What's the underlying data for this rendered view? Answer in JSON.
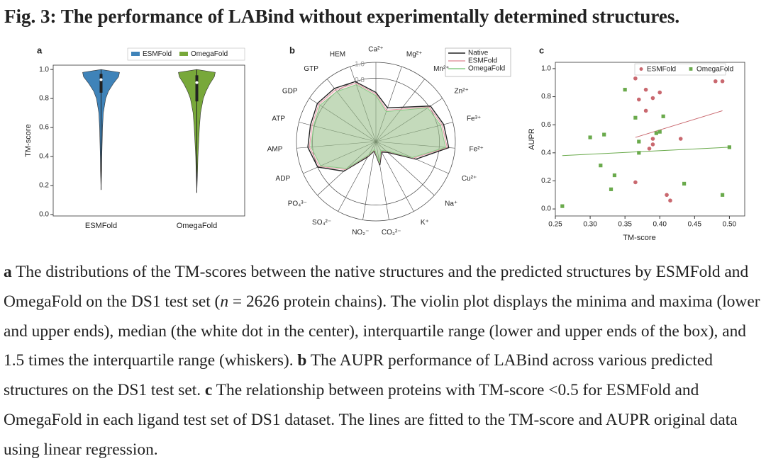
{
  "title": "Fig. 3: The performance of LABind without experimentally determined structures.",
  "chart_data": [
    {
      "type": "violin",
      "panel": "a",
      "ylabel": "TM-score",
      "categories": [
        "ESMFold",
        "OmegaFold"
      ],
      "ylim": [
        -0.01,
        1.03
      ],
      "yticks": [
        {
          "value": 0,
          "label": "0.0"
        },
        0.2,
        0.4,
        0.6,
        0.8,
        {
          "value": 1,
          "label": "1.0"
        }
      ],
      "series": [
        {
          "name": "ESMFold",
          "color": "#3f83b9",
          "min": 0.17,
          "q1": 0.84,
          "median": 0.93,
          "q3": 0.97,
          "max": 1.0,
          "kde_y": [
            0.3,
            0.4,
            0.5,
            0.6,
            0.7,
            0.8,
            0.85,
            0.9,
            0.95,
            0.98
          ],
          "kde_width": [
            0.03,
            0.04,
            0.06,
            0.08,
            0.12,
            0.25,
            0.4,
            0.65,
            0.95,
            1.0
          ]
        },
        {
          "name": "OmegaFold",
          "color": "#78a83a",
          "min": 0.15,
          "q1": 0.78,
          "median": 0.91,
          "q3": 0.96,
          "max": 1.0,
          "kde_y": [
            0.3,
            0.4,
            0.5,
            0.6,
            0.7,
            0.8,
            0.85,
            0.9,
            0.95,
            0.98
          ],
          "kde_width": [
            0.04,
            0.06,
            0.1,
            0.14,
            0.2,
            0.35,
            0.5,
            0.7,
            0.95,
            1.0
          ]
        }
      ]
    },
    {
      "type": "radar",
      "panel": "b",
      "categories": [
        "Ca²⁺",
        "Mg²⁺",
        "Mn²⁺",
        "Zn²⁺",
        "Fe³⁺",
        "Fe²⁺",
        "Cu²⁺",
        "Na⁺",
        "K⁺",
        "CO₃²⁻",
        "NO₂⁻",
        "SO₄²⁻",
        "PO₄³⁻",
        "ADP",
        "AMP",
        "ATP",
        "GDP",
        "GTP",
        "HEM"
      ],
      "rlim": [
        0,
        1
      ],
      "rticks": [
        0.8,
        {
          "value": 1,
          "label": "1.0"
        }
      ],
      "series": [
        {
          "name": "Native",
          "color": "#222222",
          "values": [
            0.62,
            0.45,
            0.55,
            0.82,
            0.88,
            0.92,
            0.55,
            0.2,
            0.15,
            0.3,
            0.12,
            0.22,
            0.55,
            0.8,
            0.86,
            0.85,
            0.88,
            0.85,
            0.8
          ]
        },
        {
          "name": "ESMFold",
          "color": "#e39aa3",
          "values": [
            0.6,
            0.42,
            0.52,
            0.8,
            0.86,
            0.9,
            0.52,
            0.18,
            0.14,
            0.28,
            0.11,
            0.2,
            0.52,
            0.78,
            0.84,
            0.83,
            0.86,
            0.83,
            0.78
          ]
        },
        {
          "name": "OmegaFold",
          "color": "#86cc86",
          "values": [
            0.58,
            0.4,
            0.5,
            0.78,
            0.84,
            0.88,
            0.5,
            0.17,
            0.13,
            0.27,
            0.1,
            0.19,
            0.5,
            0.76,
            0.82,
            0.81,
            0.84,
            0.8,
            0.76
          ]
        }
      ]
    },
    {
      "type": "scatter",
      "panel": "c",
      "xlabel": "TM-score",
      "ylabel": "AUPR",
      "xlim": [
        0.25,
        0.522
      ],
      "ylim": [
        -0.05,
        1.045
      ],
      "xticks": [
        0.25,
        {
          "value": 0.3,
          "label": "0.30"
        },
        0.35,
        {
          "value": 0.4,
          "label": "0.40"
        },
        0.45,
        {
          "value": 0.5,
          "label": "0.50"
        }
      ],
      "yticks": [
        {
          "value": 0,
          "label": "0.0"
        },
        0.2,
        0.4,
        0.6,
        0.8,
        {
          "value": 1,
          "label": "1.0"
        }
      ],
      "series": [
        {
          "name": "ESMFold",
          "color": "#c9686f",
          "marker": "circle",
          "x": [
            0.365,
            0.38,
            0.4,
            0.37,
            0.38,
            0.39,
            0.39,
            0.385,
            0.41,
            0.415,
            0.365,
            0.43,
            0.48,
            0.49,
            0.39
          ],
          "y": [
            0.93,
            0.85,
            0.83,
            0.78,
            0.7,
            0.5,
            0.46,
            0.43,
            0.1,
            0.06,
            0.19,
            0.5,
            0.91,
            0.91,
            0.79
          ],
          "fit": {
            "slope": 1.52,
            "intercept": -0.045,
            "x": [
              0.365,
              0.49
            ]
          }
        },
        {
          "name": "OmegaFold",
          "color": "#6aaa4c",
          "marker": "square",
          "x": [
            0.26,
            0.3,
            0.32,
            0.315,
            0.335,
            0.33,
            0.35,
            0.365,
            0.37,
            0.37,
            0.395,
            0.4,
            0.405,
            0.435,
            0.5,
            0.49
          ],
          "y": [
            0.02,
            0.51,
            0.53,
            0.31,
            0.24,
            0.14,
            0.85,
            0.65,
            0.48,
            0.4,
            0.54,
            0.55,
            0.66,
            0.18,
            0.44,
            0.1
          ],
          "fit": {
            "slope": 0.25,
            "intercept": 0.315,
            "x": [
              0.26,
              0.5
            ]
          }
        }
      ]
    }
  ],
  "caption": [
    {
      "text": "a",
      "style": "bold"
    },
    {
      "text": " The distributions of the TM-scores between the native structures and the predicted structures by ESMFold and OmegaFold on the DS1 test set (",
      "style": "normal"
    },
    {
      "text": "n",
      "style": "italic"
    },
    {
      "text": " = 2626 protein chains). The violin plot displays the minima and maxima (lower and upper ends), median (the white dot in the center), interquartile range (lower and upper ends of the box), and 1.5 times the interquartile range (whiskers). ",
      "style": "normal"
    },
    {
      "text": "b",
      "style": "bold"
    },
    {
      "text": " The AUPR performance of LABind across various predicted structures on the DS1 test set. ",
      "style": "normal"
    },
    {
      "text": "c",
      "style": "bold"
    },
    {
      "text": " The relationship between proteins with TM-score  <0.5 for ESMFold and OmegaFold in each ligand test set of DS1 dataset. The lines are fitted to the TM-score and AUPR original data using linear regression.",
      "style": "normal"
    }
  ]
}
